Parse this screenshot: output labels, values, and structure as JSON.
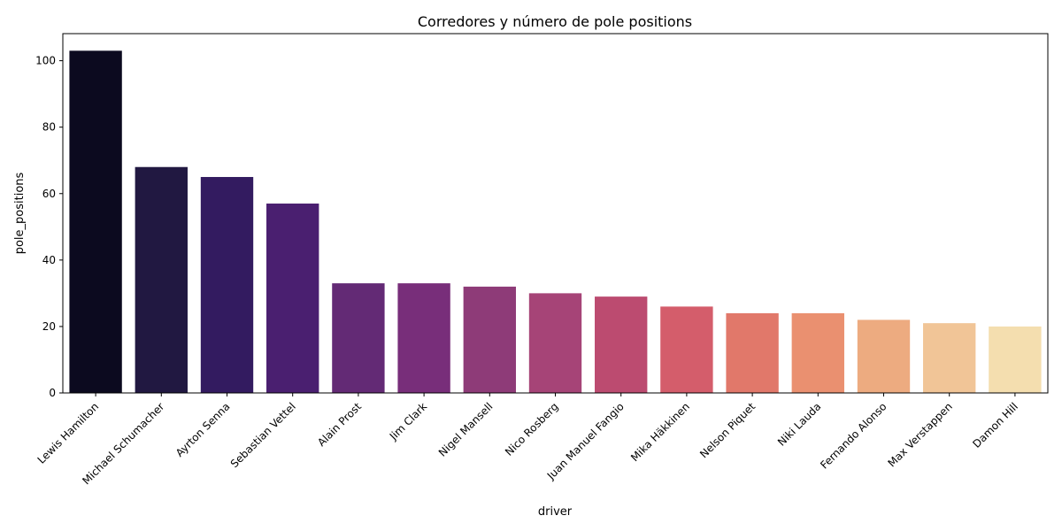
{
  "chart_data": {
    "type": "bar",
    "title": "Corredores y número de pole positions",
    "xlabel": "driver",
    "ylabel": "pole_positions",
    "categories": [
      "Lewis Hamilton",
      "Michael Schumacher",
      "Ayrton Senna",
      "Sebastian Vettel",
      "Alain Prost",
      "Jim Clark",
      "Nigel Mansell",
      "Nico Rosberg",
      "Juan Manuel Fangio",
      "Mika Häkkinen",
      "Nelson Piquet",
      "Niki Lauda",
      "Fernando Alonso",
      "Max Verstappen",
      "Damon Hill"
    ],
    "values": [
      103,
      68,
      65,
      57,
      33,
      33,
      32,
      30,
      29,
      26,
      24,
      24,
      22,
      21,
      20
    ],
    "colors": [
      "#0c0a1f",
      "#211841",
      "#331b60",
      "#4a1f70",
      "#632a75",
      "#782e7a",
      "#8e3b78",
      "#a64477",
      "#bc4b70",
      "#d45d6b",
      "#e1786a",
      "#ea9070",
      "#edab80",
      "#f1c597",
      "#f4deaf"
    ],
    "ylim": [
      0,
      108.15
    ],
    "yticks": [
      0,
      20,
      40,
      60,
      80,
      100
    ],
    "grid": false,
    "legend": "none"
  }
}
